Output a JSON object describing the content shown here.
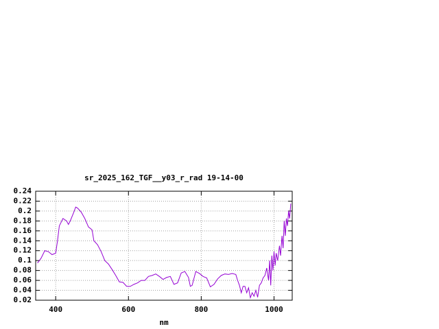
{
  "chart_data": {
    "type": "line",
    "title": "sr_2025_162_TGF__y03_r_rad 19-14-00",
    "x_label": "nm",
    "x": [
      350,
      360,
      370,
      380,
      390,
      400,
      405,
      410,
      420,
      430,
      435,
      440,
      450,
      455,
      460,
      470,
      480,
      490,
      500,
      505,
      515,
      525,
      535,
      545,
      555,
      565,
      575,
      585,
      595,
      605,
      615,
      625,
      635,
      645,
      655,
      665,
      675,
      685,
      695,
      705,
      715,
      725,
      735,
      745,
      755,
      765,
      770,
      775,
      785,
      795,
      805,
      815,
      825,
      835,
      845,
      855,
      865,
      875,
      885,
      895,
      900,
      905,
      910,
      915,
      920,
      925,
      930,
      935,
      940,
      945,
      950,
      955,
      960,
      965,
      970,
      975,
      980,
      985,
      988,
      991,
      994,
      997,
      1000,
      1003,
      1006,
      1010,
      1015,
      1018,
      1022,
      1025,
      1028,
      1031,
      1034,
      1037,
      1040,
      1043,
      1046
    ],
    "series": [
      {
        "name": "sr_2025_162_TGF__y03_r_rad",
        "color": "#9400d3",
        "values": [
          0.095,
          0.105,
          0.12,
          0.118,
          0.112,
          0.115,
          0.14,
          0.17,
          0.185,
          0.18,
          0.173,
          0.18,
          0.198,
          0.208,
          0.206,
          0.198,
          0.185,
          0.168,
          0.162,
          0.14,
          0.132,
          0.118,
          0.1,
          0.093,
          0.082,
          0.07,
          0.057,
          0.056,
          0.048,
          0.048,
          0.052,
          0.055,
          0.06,
          0.06,
          0.068,
          0.07,
          0.073,
          0.068,
          0.062,
          0.066,
          0.068,
          0.052,
          0.055,
          0.075,
          0.078,
          0.066,
          0.048,
          0.05,
          0.078,
          0.074,
          0.068,
          0.065,
          0.047,
          0.052,
          0.063,
          0.07,
          0.073,
          0.072,
          0.074,
          0.072,
          0.06,
          0.05,
          0.035,
          0.048,
          0.048,
          0.035,
          0.045,
          0.025,
          0.035,
          0.028,
          0.04,
          0.026,
          0.05,
          0.055,
          0.065,
          0.07,
          0.085,
          0.06,
          0.1,
          0.05,
          0.11,
          0.08,
          0.118,
          0.09,
          0.115,
          0.1,
          0.13,
          0.11,
          0.15,
          0.125,
          0.18,
          0.15,
          0.185,
          0.17,
          0.2,
          0.185,
          0.215
        ]
      }
    ],
    "xlim": [
      345,
      1050
    ],
    "ylim": [
      0.02,
      0.24
    ],
    "xticks": [
      400,
      600,
      800,
      1000
    ],
    "yticks": [
      0.02,
      0.04,
      0.06,
      0.08,
      0.1,
      0.12,
      0.14,
      0.16,
      0.18,
      0.2,
      0.22,
      0.24
    ],
    "grid": true
  }
}
